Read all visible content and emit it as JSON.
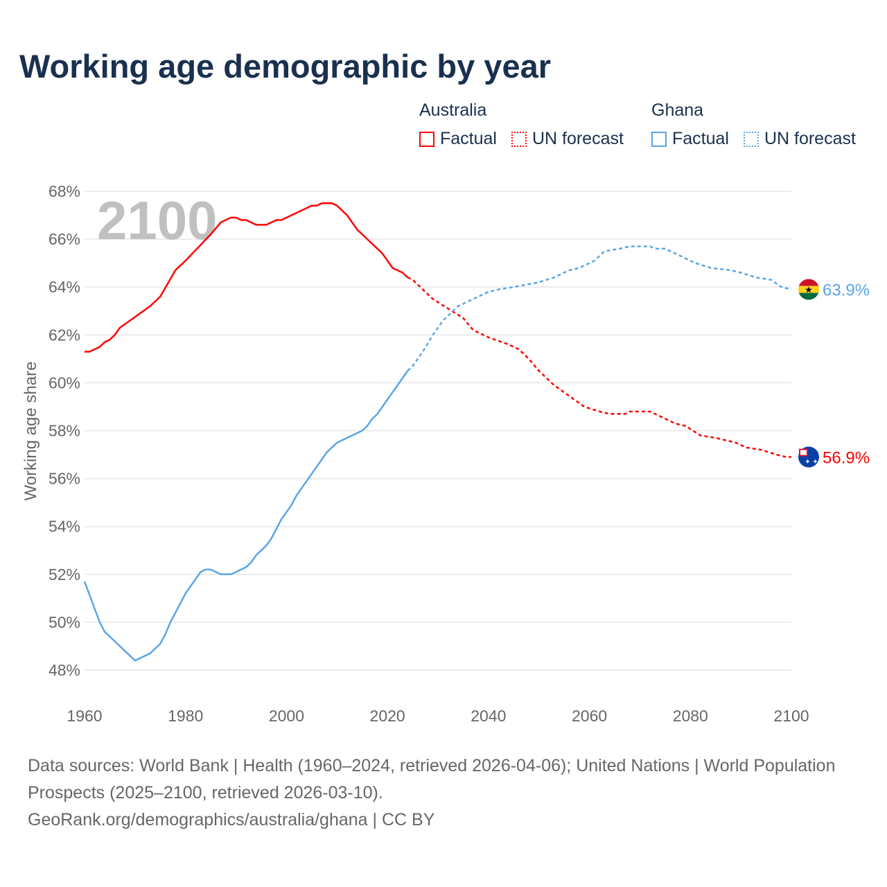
{
  "colors": {
    "australia": "#ff0000",
    "ghana": "#5aa5e8",
    "title": "#1a3050",
    "grid": "#e6e6e6",
    "year_watermark": "#c0c0c0"
  },
  "legend": {
    "groups": [
      {
        "name": "Australia",
        "factual": "Factual",
        "forecast": "UN forecast"
      },
      {
        "name": "Ghana",
        "factual": "Factual",
        "forecast": "UN forecast"
      }
    ]
  },
  "footer": {
    "line1": "Data sources: World Bank | Health (1960–2024, retrieved 2026-04-06); United Nations | World Population Prospects (2025–2100, retrieved 2026-03-10).",
    "line2": "GeoRank.org/demographics/australia/ghana | CC BY"
  },
  "chart_data": {
    "type": "line",
    "title": "Working age demographic by year",
    "watermark_year": "2100",
    "xlabel": "",
    "ylabel": "Working age share",
    "xlim": [
      1960,
      2100
    ],
    "ylim": [
      47,
      68
    ],
    "xticks": [
      "1960",
      "1980",
      "2000",
      "2020",
      "2040",
      "2060",
      "2080",
      "2100"
    ],
    "yticks": [
      "48%",
      "50%",
      "52%",
      "54%",
      "56%",
      "58%",
      "60%",
      "62%",
      "64%",
      "66%",
      "68%"
    ],
    "grid": true,
    "legend_position": "top-right",
    "forecast_start": 2024,
    "series": [
      {
        "name": "Australia",
        "end_label": "56.9%",
        "flag": "australia-flag",
        "points": [
          [
            1960,
            61.3
          ],
          [
            1961,
            61.3
          ],
          [
            1963,
            61.5
          ],
          [
            1964,
            61.7
          ],
          [
            1965,
            61.8
          ],
          [
            1966,
            62.0
          ],
          [
            1967,
            62.3
          ],
          [
            1969,
            62.6
          ],
          [
            1970,
            62.75
          ],
          [
            1971,
            62.9
          ],
          [
            1972,
            63.05
          ],
          [
            1973,
            63.2
          ],
          [
            1975,
            63.6
          ],
          [
            1978,
            64.7
          ],
          [
            1980,
            65.1
          ],
          [
            1985,
            66.2
          ],
          [
            1987,
            66.7
          ],
          [
            1989,
            66.9
          ],
          [
            1990,
            66.9
          ],
          [
            1991,
            66.8
          ],
          [
            1992,
            66.8
          ],
          [
            1994,
            66.6
          ],
          [
            1996,
            66.6
          ],
          [
            1998,
            66.8
          ],
          [
            1999,
            66.8
          ],
          [
            2002,
            67.1
          ],
          [
            2005,
            67.4
          ],
          [
            2006,
            67.4
          ],
          [
            2007,
            67.5
          ],
          [
            2009,
            67.5
          ],
          [
            2010,
            67.4
          ],
          [
            2012,
            67.0
          ],
          [
            2014,
            66.4
          ],
          [
            2016,
            66.0
          ],
          [
            2019,
            65.4
          ],
          [
            2021,
            64.8
          ],
          [
            2023,
            64.6
          ],
          [
            2024,
            64.4
          ],
          [
            2025,
            64.3
          ],
          [
            2027,
            63.9
          ],
          [
            2029,
            63.5
          ],
          [
            2032,
            63.1
          ],
          [
            2035,
            62.7
          ],
          [
            2037,
            62.2
          ],
          [
            2040,
            61.9
          ],
          [
            2042,
            61.75
          ],
          [
            2044,
            61.6
          ],
          [
            2046,
            61.4
          ],
          [
            2048,
            61.0
          ],
          [
            2050,
            60.5
          ],
          [
            2053,
            59.9
          ],
          [
            2055,
            59.6
          ],
          [
            2057,
            59.3
          ],
          [
            2059,
            59.0
          ],
          [
            2062,
            58.8
          ],
          [
            2064,
            58.7
          ],
          [
            2067,
            58.7
          ],
          [
            2068,
            58.8
          ],
          [
            2072,
            58.8
          ],
          [
            2075,
            58.5
          ],
          [
            2077,
            58.3
          ],
          [
            2079,
            58.2
          ],
          [
            2082,
            57.8
          ],
          [
            2085,
            57.7
          ],
          [
            2087,
            57.6
          ],
          [
            2089,
            57.5
          ],
          [
            2091,
            57.3
          ],
          [
            2094,
            57.2
          ],
          [
            2097,
            57.0
          ],
          [
            2099,
            56.9
          ],
          [
            2100,
            56.9
          ]
        ]
      },
      {
        "name": "Ghana",
        "end_label": "63.9%",
        "flag": "ghana-flag",
        "points": [
          [
            1960,
            51.7
          ],
          [
            1963,
            50.0
          ],
          [
            1964,
            49.6
          ],
          [
            1966,
            49.2
          ],
          [
            1969,
            48.6
          ],
          [
            1970,
            48.4
          ],
          [
            1973,
            48.7
          ],
          [
            1975,
            49.1
          ],
          [
            1976,
            49.5
          ],
          [
            1977,
            50.0
          ],
          [
            1980,
            51.2
          ],
          [
            1983,
            52.1
          ],
          [
            1984,
            52.2
          ],
          [
            1985,
            52.2
          ],
          [
            1987,
            52.0
          ],
          [
            1989,
            52.0
          ],
          [
            1992,
            52.3
          ],
          [
            1993,
            52.5
          ],
          [
            1994,
            52.8
          ],
          [
            1996,
            53.2
          ],
          [
            1997,
            53.5
          ],
          [
            1999,
            54.3
          ],
          [
            2001,
            54.9
          ],
          [
            2002,
            55.3
          ],
          [
            2003,
            55.6
          ],
          [
            2005,
            56.2
          ],
          [
            2006,
            56.5
          ],
          [
            2008,
            57.1
          ],
          [
            2010,
            57.5
          ],
          [
            2015,
            58.0
          ],
          [
            2016,
            58.2
          ],
          [
            2017,
            58.5
          ],
          [
            2018,
            58.7
          ],
          [
            2020,
            59.3
          ],
          [
            2022,
            59.9
          ],
          [
            2024,
            60.5
          ],
          [
            2025,
            60.7
          ],
          [
            2027,
            61.3
          ],
          [
            2029,
            62.0
          ],
          [
            2031,
            62.6
          ],
          [
            2034,
            63.2
          ],
          [
            2036,
            63.4
          ],
          [
            2040,
            63.8
          ],
          [
            2042,
            63.9
          ],
          [
            2045,
            64.0
          ],
          [
            2050,
            64.2
          ],
          [
            2053,
            64.4
          ],
          [
            2056,
            64.7
          ],
          [
            2058,
            64.8
          ],
          [
            2061,
            65.1
          ],
          [
            2063,
            65.5
          ],
          [
            2066,
            65.6
          ],
          [
            2068,
            65.7
          ],
          [
            2072,
            65.7
          ],
          [
            2073,
            65.6
          ],
          [
            2075,
            65.6
          ],
          [
            2078,
            65.3
          ],
          [
            2081,
            65.0
          ],
          [
            2084,
            64.8
          ],
          [
            2088,
            64.7
          ],
          [
            2090,
            64.6
          ],
          [
            2093,
            64.4
          ],
          [
            2096,
            64.3
          ],
          [
            2098,
            64.0
          ],
          [
            2100,
            63.9
          ]
        ]
      }
    ]
  }
}
